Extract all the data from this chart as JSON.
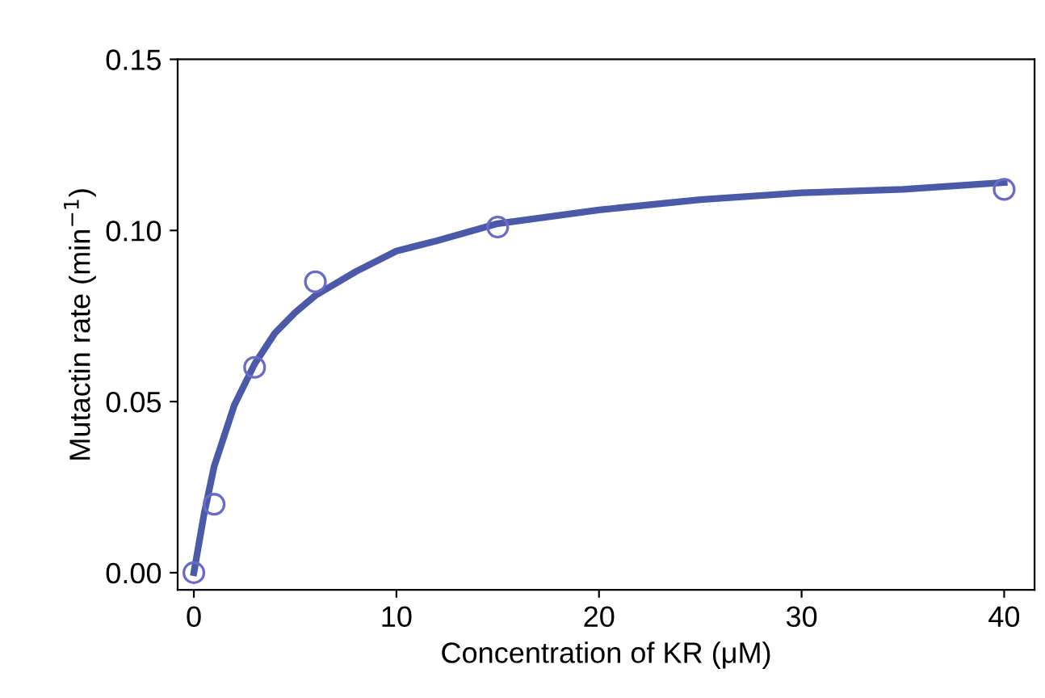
{
  "chart_data": {
    "type": "scatter",
    "xlabel": "Concentration of KR (μM)",
    "ylabel": "Mutactin rate (min$^{−1}$)",
    "xlim": [
      -0.8,
      41.5
    ],
    "ylim": [
      -0.005,
      0.15
    ],
    "xticks": [
      0,
      10,
      20,
      30,
      40
    ],
    "yticks": [
      {
        "value": 0,
        "label": "0.00"
      },
      {
        "value": 0.05,
        "label": "0.05"
      },
      {
        "value": 0.1,
        "label": "0.10"
      },
      {
        "value": 0.15,
        "label": "0.15"
      }
    ],
    "grid": false,
    "series": [
      {
        "type": "line",
        "color": "#4a5aa8",
        "line_style": "solid",
        "marker": "none",
        "x": [
          0,
          0.5,
          1,
          2,
          3,
          4,
          5,
          6,
          8,
          10,
          12,
          15,
          20,
          25,
          30,
          35,
          40
        ],
        "values": [
          0,
          0.017,
          0.031,
          0.049,
          0.061,
          0.07,
          0.076,
          0.081,
          0.088,
          0.094,
          0.097,
          0.102,
          0.106,
          0.109,
          0.111,
          0.112,
          0.114
        ]
      },
      {
        "color": "#6a6ac8",
        "marker": "circle",
        "x": [
          0,
          1,
          3,
          6,
          15,
          40
        ],
        "values": [
          0,
          0.02,
          0.06,
          0.085,
          0.101,
          0.112
        ]
      }
    ]
  }
}
